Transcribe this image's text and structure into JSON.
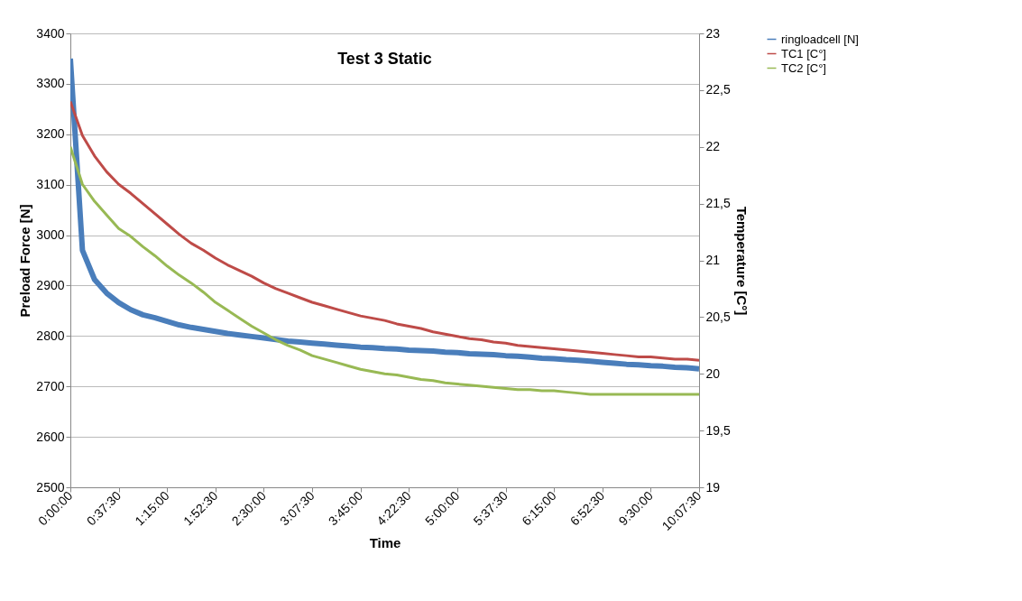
{
  "chart_data": {
    "type": "line",
    "title": "Test 3 Static",
    "xlabel": "Time",
    "ylabel": "Preload Force [N]",
    "y2label": "Temperature [C°]",
    "categories": [
      "0:00:00",
      null,
      null,
      null,
      "0:37:30",
      null,
      null,
      null,
      "1:15:00",
      null,
      null,
      null,
      "1:52:30",
      null,
      null,
      null,
      "2:30:00",
      null,
      null,
      null,
      "3:07:30",
      null,
      null,
      null,
      "3:45:00",
      null,
      null,
      null,
      "4:22:30",
      null,
      null,
      null,
      "5:00:00",
      null,
      null,
      null,
      "5:37:30",
      null,
      null,
      null,
      "6:15:00",
      null,
      null,
      null,
      "6:52:30",
      null,
      null,
      null,
      "9:30:00",
      null,
      null,
      null,
      "10:07:30"
    ],
    "ylim": [
      2500,
      3400
    ],
    "yticks": [
      2500,
      2600,
      2700,
      2800,
      2900,
      3000,
      3100,
      3200,
      3300,
      3400
    ],
    "y2lim": [
      19,
      23
    ],
    "y2ticks": [
      19,
      {
        "value": 19.5,
        "label": "19,5"
      },
      20,
      {
        "value": 20.5,
        "label": "20,5"
      },
      21,
      {
        "value": 21.5,
        "label": "21,5"
      },
      22,
      {
        "value": 22.5,
        "label": "22,5"
      },
      23
    ],
    "grid": "y",
    "legend": "right",
    "marker": "none",
    "line_style": "solid",
    "series": [
      {
        "name": "ringloadcell [N]",
        "color": "#4a7ebb",
        "values": [
          3350,
          2970,
          2912,
          2885,
          2866,
          2852,
          2842,
          2836,
          2829,
          2822,
          2817,
          2813,
          2809,
          2805,
          2802,
          2799,
          2796,
          2793,
          2790,
          2788,
          2786,
          2784,
          2782,
          2780,
          2778,
          2777,
          2775,
          2774,
          2772,
          2771,
          2770,
          2768,
          2767,
          2765,
          2764,
          2763,
          2761,
          2760,
          2758,
          2756,
          2755,
          2753,
          2752,
          2750,
          2748,
          2746,
          2744,
          2743,
          2741,
          2740,
          2738,
          2737,
          2735
        ]
      },
      {
        "name": "TC1 [C°]",
        "color": "#be4b48",
        "axis": "y2",
        "values": [
          22.4,
          22.1,
          21.92,
          21.78,
          21.67,
          21.59,
          21.5,
          21.41,
          21.32,
          21.23,
          21.15,
          21.09,
          21.02,
          20.96,
          20.91,
          20.86,
          20.8,
          20.75,
          20.71,
          20.67,
          20.63,
          20.6,
          20.57,
          20.54,
          20.51,
          20.49,
          20.47,
          20.44,
          20.42,
          20.4,
          20.37,
          20.35,
          20.33,
          20.31,
          20.3,
          20.28,
          20.27,
          20.25,
          20.24,
          20.23,
          20.22,
          20.21,
          20.2,
          20.19,
          20.18,
          20.17,
          20.16,
          20.15,
          20.15,
          20.14,
          20.13,
          20.13,
          20.12
        ]
      },
      {
        "name": "TC2 [C°]",
        "color": "#98b954",
        "axis": "y2",
        "values": [
          22.0,
          21.67,
          21.52,
          21.4,
          21.28,
          21.21,
          21.12,
          21.04,
          20.95,
          20.87,
          20.8,
          20.72,
          20.63,
          20.56,
          20.49,
          20.42,
          20.36,
          20.3,
          20.25,
          20.21,
          20.16,
          20.13,
          20.1,
          20.07,
          20.04,
          20.02,
          20.0,
          19.99,
          19.97,
          19.95,
          19.94,
          19.92,
          19.91,
          19.9,
          19.89,
          19.88,
          19.87,
          19.86,
          19.86,
          19.85,
          19.85,
          19.84,
          19.83,
          19.82,
          19.82,
          19.82,
          19.82,
          19.82,
          19.82,
          19.82,
          19.82,
          19.82,
          19.82
        ]
      }
    ]
  }
}
